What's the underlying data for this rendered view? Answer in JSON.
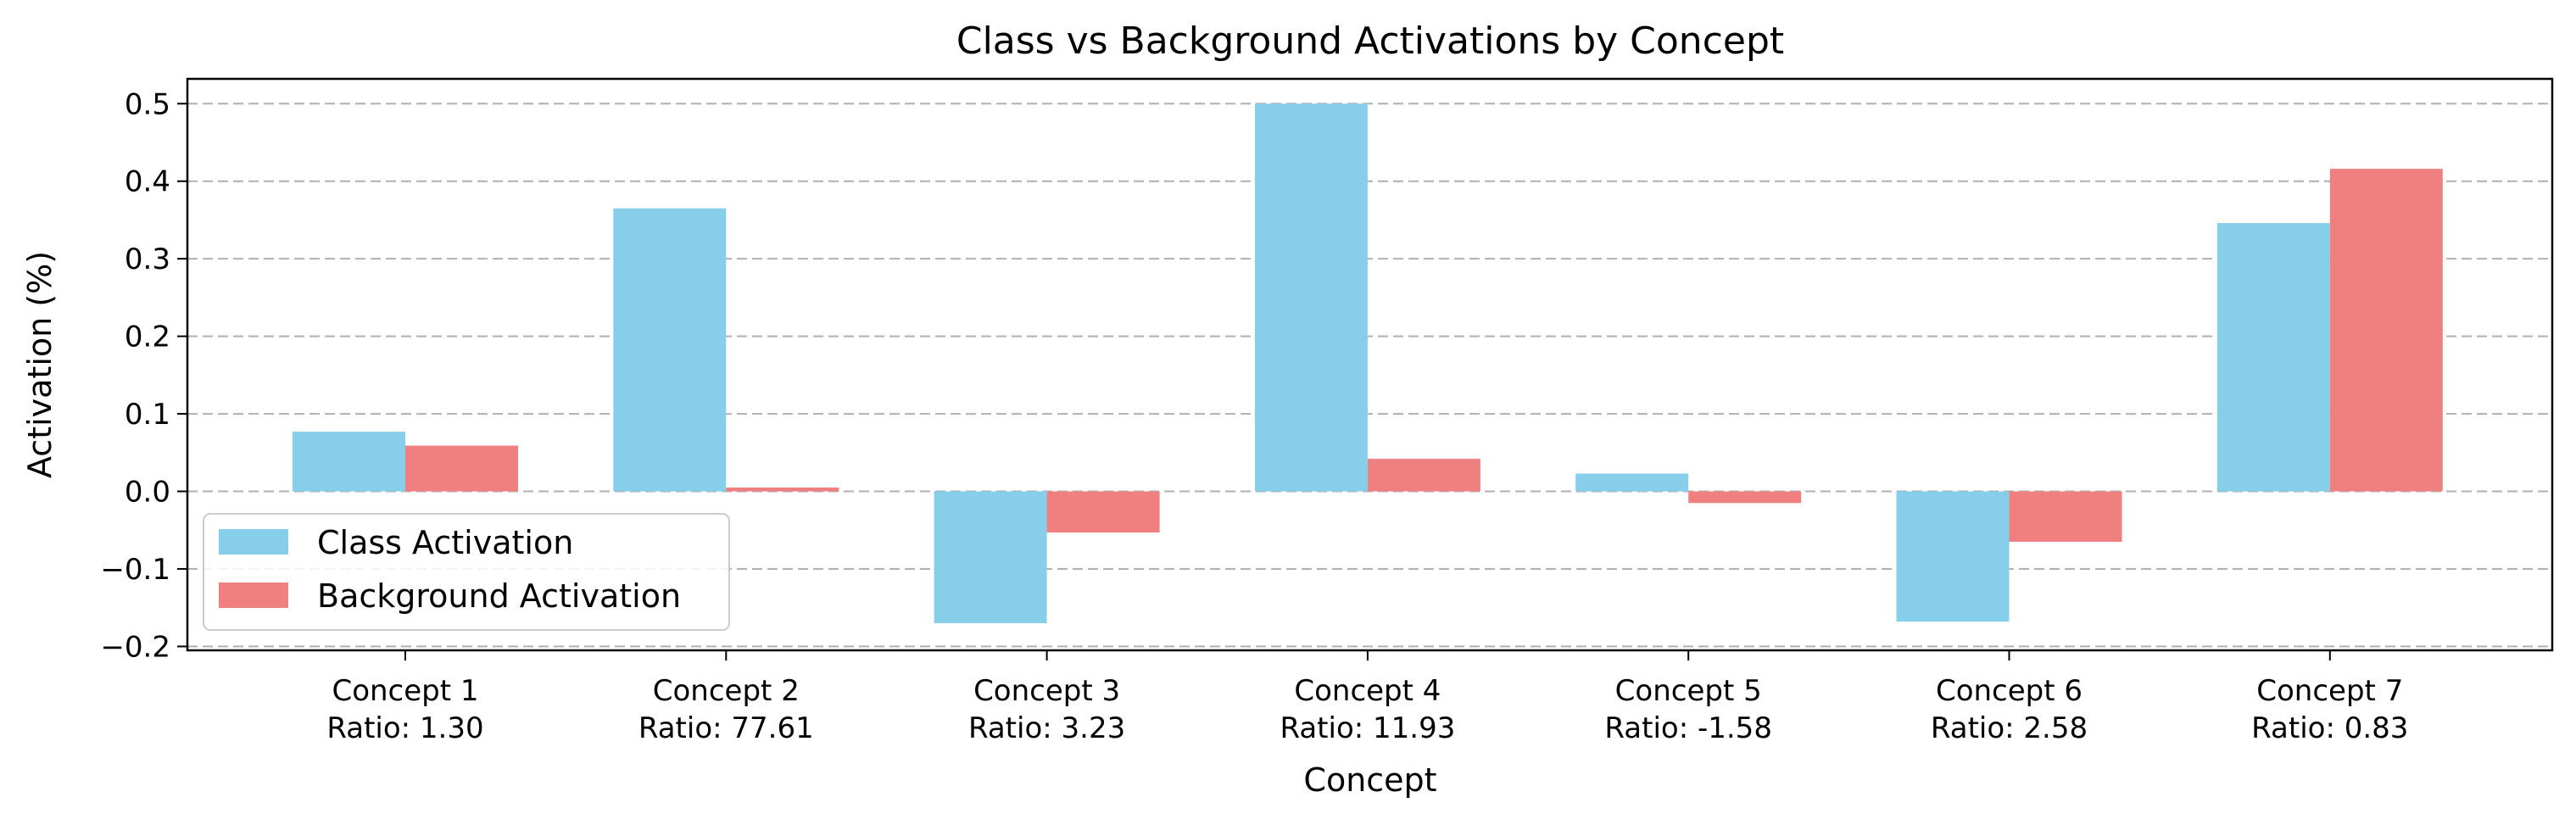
{
  "chart_data": {
    "type": "bar",
    "title": "Class vs Background Activations by Concept",
    "xlabel": "Concept",
    "ylabel": "Activation (%)",
    "categories": [
      "Concept 1",
      "Concept 2",
      "Concept 3",
      "Concept 4",
      "Concept 5",
      "Concept 6",
      "Concept 7"
    ],
    "ratio_labels": [
      "Ratio: 1.30",
      "Ratio: 77.61",
      "Ratio: 3.23",
      "Ratio: 11.93",
      "Ratio: -1.58",
      "Ratio: 2.58",
      "Ratio: 0.83"
    ],
    "series": [
      {
        "name": "Class Activation",
        "color": "#87CEEB",
        "values": [
          0.077,
          0.365,
          -0.17,
          0.5,
          0.023,
          -0.168,
          0.346
        ]
      },
      {
        "name": "Background Activation",
        "color": "#F08080",
        "values": [
          0.059,
          0.005,
          -0.053,
          0.042,
          -0.015,
          -0.065,
          0.416
        ]
      }
    ],
    "ylim": [
      -0.205,
      0.532
    ],
    "yticks": [
      "0.5",
      "0.4",
      "0.3",
      "0.2",
      "0.1",
      "0.0",
      "−0.1",
      "−0.2"
    ],
    "ytick_values": [
      0.5,
      0.4,
      0.3,
      0.2,
      0.1,
      0.0,
      -0.1,
      -0.2
    ],
    "grid": "y-dashed",
    "legend_position": "lower-left"
  }
}
